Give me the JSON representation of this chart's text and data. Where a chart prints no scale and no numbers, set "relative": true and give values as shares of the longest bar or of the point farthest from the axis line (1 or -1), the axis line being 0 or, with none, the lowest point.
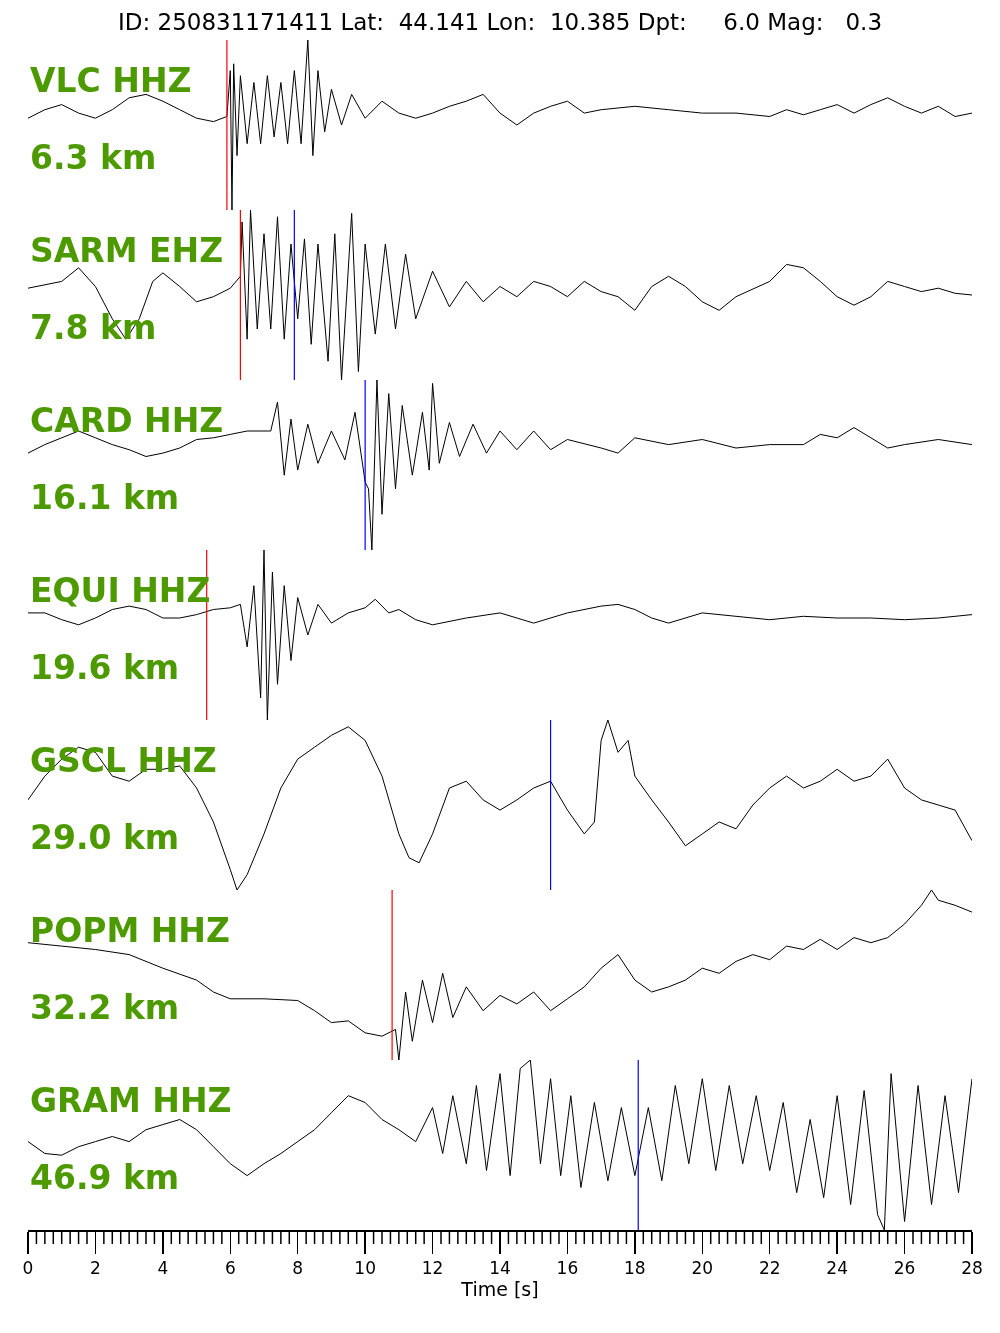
{
  "chart_data": [
    {
      "type": "line",
      "title": "ID: 250831171411 Lat:  44.141 Lon:  10.385 Dpt:     6.0 Mag:   0.3",
      "relative": true,
      "color": "#000000",
      "xlim": [
        0,
        28
      ],
      "tick_labels": false,
      "annotations": [
        "VLC HHZ",
        "6.3 km"
      ],
      "ref_lines": [
        {
          "axis": "x",
          "value": 5.9,
          "color": "#ff0000"
        }
      ],
      "x": [
        0,
        0.5,
        1,
        1.5,
        2,
        2.5,
        3,
        3.5,
        4,
        4.5,
        5,
        5.5,
        5.9,
        6.0,
        6.05,
        6.1,
        6.2,
        6.3,
        6.5,
        6.7,
        6.9,
        7.1,
        7.3,
        7.5,
        7.7,
        7.9,
        8.1,
        8.3,
        8.45,
        8.6,
        8.8,
        9,
        9.3,
        9.6,
        10,
        10.5,
        11,
        11.5,
        12,
        12.5,
        13,
        13.5,
        14,
        14.5,
        15,
        15.5,
        16,
        16.5,
        17,
        18,
        19,
        20,
        21,
        22,
        22.5,
        23,
        23.5,
        24,
        24.5,
        25,
        25.5,
        26,
        26.5,
        27,
        27.5,
        28
      ],
      "values": [
        0.54,
        0.59,
        0.62,
        0.57,
        0.54,
        0.59,
        0.66,
        0.68,
        0.64,
        0.59,
        0.54,
        0.52,
        0.55,
        0.82,
        0,
        0.86,
        0.32,
        0.79,
        0.39,
        0.75,
        0.39,
        0.79,
        0.43,
        0.75,
        0.39,
        0.82,
        0.39,
        1,
        0.32,
        0.82,
        0.46,
        0.71,
        0.5,
        0.68,
        0.54,
        0.64,
        0.57,
        0.54,
        0.57,
        0.61,
        0.64,
        0.68,
        0.57,
        0.5,
        0.57,
        0.61,
        0.64,
        0.57,
        0.59,
        0.61,
        0.59,
        0.57,
        0.57,
        0.55,
        0.59,
        0.56,
        0.59,
        0.62,
        0.57,
        0.62,
        0.66,
        0.61,
        0.57,
        0.61,
        0.55,
        0.57
      ]
    },
    {
      "type": "line",
      "relative": true,
      "color": "#000000",
      "xlim": [
        0,
        28
      ],
      "tick_labels": false,
      "annotations": [
        "SARM EHZ",
        "7.8 km"
      ],
      "ref_lines": [
        {
          "axis": "x",
          "value": 6.3,
          "color": "#ff0000"
        },
        {
          "axis": "x",
          "value": 7.9,
          "color": "#0000ff"
        }
      ],
      "x": [
        0,
        1,
        1.5,
        2,
        2.5,
        2.9,
        3.3,
        3.7,
        4,
        4.5,
        5,
        5.5,
        6,
        6.3,
        6.35,
        6.5,
        6.6,
        6.8,
        7,
        7.2,
        7.4,
        7.6,
        7.8,
        8,
        8.2,
        8.4,
        8.6,
        8.9,
        9.1,
        9.3,
        9.6,
        9.8,
        10,
        10.3,
        10.6,
        10.9,
        11.2,
        11.5,
        12,
        12.5,
        13,
        13.5,
        14,
        14.5,
        15,
        15.5,
        16,
        16.5,
        17,
        17.5,
        18,
        18.5,
        19,
        19.5,
        20,
        20.5,
        21,
        22,
        22.5,
        23,
        23.5,
        24,
        24.5,
        25,
        25.5,
        26,
        26.5,
        27,
        27.5,
        28
      ],
      "values": [
        0.54,
        0.58,
        0.66,
        0.55,
        0.36,
        0.24,
        0.36,
        0.58,
        0.63,
        0.55,
        0.46,
        0.49,
        0.54,
        0.61,
        0.93,
        0.24,
        1,
        0.3,
        0.86,
        0.3,
        0.96,
        0.24,
        0.8,
        0.36,
        0.83,
        0.21,
        0.8,
        0.11,
        0.86,
        0,
        0.98,
        0.05,
        0.8,
        0.27,
        0.8,
        0.3,
        0.74,
        0.36,
        0.64,
        0.43,
        0.58,
        0.46,
        0.55,
        0.49,
        0.58,
        0.55,
        0.49,
        0.58,
        0.52,
        0.49,
        0.41,
        0.55,
        0.61,
        0.55,
        0.46,
        0.41,
        0.49,
        0.58,
        0.68,
        0.66,
        0.58,
        0.49,
        0.44,
        0.49,
        0.58,
        0.55,
        0.52,
        0.54,
        0.51,
        0.5
      ]
    },
    {
      "type": "line",
      "relative": true,
      "color": "#000000",
      "xlim": [
        0,
        28
      ],
      "tick_labels": false,
      "annotations": [
        "CARD HHZ",
        "16.1 km"
      ],
      "ref_lines": [
        {
          "axis": "x",
          "value": 10.0,
          "color": "#0000ff"
        }
      ],
      "x": [
        0,
        0.5,
        1,
        1.5,
        2,
        2.5,
        3,
        3.5,
        4,
        4.5,
        5,
        5.5,
        6,
        6.5,
        7.2,
        7.4,
        7.6,
        7.8,
        8,
        8.3,
        8.6,
        9,
        9.4,
        9.7,
        10,
        10.1,
        10.2,
        10.35,
        10.5,
        10.7,
        10.9,
        11.1,
        11.4,
        11.7,
        11.9,
        12,
        12.2,
        12.5,
        12.8,
        13.2,
        13.6,
        14,
        14.5,
        15,
        15.5,
        16,
        17,
        17.5,
        18,
        19,
        20,
        21,
        22,
        23,
        23.5,
        24,
        24.5,
        25,
        25.5,
        26,
        27,
        28
      ],
      "values": [
        0.57,
        0.62,
        0.66,
        0.7,
        0.66,
        0.62,
        0.59,
        0.55,
        0.57,
        0.6,
        0.65,
        0.66,
        0.68,
        0.7,
        0.7,
        0.87,
        0.44,
        0.77,
        0.47,
        0.74,
        0.51,
        0.7,
        0.53,
        0.81,
        0.4,
        0.36,
        0,
        1,
        0.21,
        0.92,
        0.36,
        0.85,
        0.44,
        0.81,
        0.47,
        0.98,
        0.51,
        0.75,
        0.55,
        0.74,
        0.57,
        0.7,
        0.59,
        0.7,
        0.59,
        0.65,
        0.6,
        0.57,
        0.66,
        0.62,
        0.65,
        0.6,
        0.62,
        0.62,
        0.68,
        0.66,
        0.72,
        0.66,
        0.6,
        0.62,
        0.65,
        0.62
      ]
    },
    {
      "type": "line",
      "relative": true,
      "color": "#000000",
      "xlim": [
        0,
        28
      ],
      "tick_labels": false,
      "annotations": [
        "EQUI HHZ",
        "19.6 km"
      ],
      "ref_lines": [
        {
          "axis": "x",
          "value": 5.3,
          "color": "#ff0000"
        }
      ],
      "x": [
        0,
        0.5,
        1,
        1.5,
        2,
        2.5,
        3,
        3.5,
        4,
        4.5,
        5,
        5.5,
        6,
        6.3,
        6.5,
        6.7,
        6.9,
        7.0,
        7.1,
        7.25,
        7.4,
        7.6,
        7.8,
        8,
        8.3,
        8.6,
        9,
        9.5,
        10,
        10.3,
        10.7,
        11,
        11.5,
        12,
        13,
        14,
        14.5,
        15,
        16,
        17,
        17.5,
        18,
        18.5,
        19,
        20,
        21,
        22,
        23,
        24,
        25,
        26,
        27,
        28
      ],
      "values": [
        0.63,
        0.63,
        0.59,
        0.56,
        0.6,
        0.65,
        0.67,
        0.65,
        0.6,
        0.6,
        0.62,
        0.65,
        0.66,
        0.68,
        0.43,
        0.79,
        0.13,
        1,
        0,
        0.87,
        0.21,
        0.79,
        0.35,
        0.72,
        0.5,
        0.68,
        0.57,
        0.63,
        0.66,
        0.71,
        0.63,
        0.65,
        0.59,
        0.56,
        0.6,
        0.63,
        0.6,
        0.57,
        0.63,
        0.67,
        0.68,
        0.65,
        0.6,
        0.57,
        0.63,
        0.61,
        0.59,
        0.61,
        0.6,
        0.6,
        0.59,
        0.6,
        0.62
      ]
    },
    {
      "type": "line",
      "relative": true,
      "color": "#000000",
      "xlim": [
        0,
        28
      ],
      "tick_labels": false,
      "annotations": [
        "GSCL HHZ",
        "29.0 km"
      ],
      "ref_lines": [
        {
          "axis": "x",
          "value": 15.5,
          "color": "#0000ff"
        }
      ],
      "x": [
        0,
        0.5,
        1,
        1.5,
        2,
        2.5,
        3,
        3.5,
        4,
        4.5,
        5,
        5.5,
        6,
        6.2,
        6.5,
        7,
        7.5,
        8,
        8.5,
        9,
        9.5,
        10,
        10.5,
        11,
        11.3,
        11.6,
        12,
        12.5,
        13,
        13.5,
        14,
        14.5,
        15,
        15.5,
        16,
        16.5,
        16.8,
        17,
        17.2,
        17.5,
        17.8,
        18,
        18.5,
        19,
        19.5,
        20,
        20.5,
        21,
        21.5,
        22,
        22.5,
        23,
        23.5,
        24,
        24.5,
        25,
        25.5,
        26,
        26.5,
        27,
        27.5,
        28
      ],
      "values": [
        0.53,
        0.67,
        0.77,
        0.84,
        0.81,
        0.67,
        0.64,
        0.71,
        0.71,
        0.73,
        0.6,
        0.4,
        0.12,
        0,
        0.09,
        0.33,
        0.6,
        0.77,
        0.84,
        0.91,
        0.96,
        0.88,
        0.67,
        0.33,
        0.19,
        0.16,
        0.33,
        0.6,
        0.64,
        0.53,
        0.47,
        0.53,
        0.6,
        0.64,
        0.47,
        0.33,
        0.4,
        0.88,
        1,
        0.81,
        0.88,
        0.67,
        0.53,
        0.4,
        0.26,
        0.33,
        0.4,
        0.36,
        0.5,
        0.6,
        0.67,
        0.6,
        0.64,
        0.71,
        0.64,
        0.67,
        0.77,
        0.6,
        0.53,
        0.5,
        0.47,
        0.29
      ]
    },
    {
      "type": "line",
      "relative": true,
      "color": "#000000",
      "xlim": [
        0,
        28
      ],
      "tick_labels": false,
      "annotations": [
        "POPM HHZ",
        "32.2 km"
      ],
      "ref_lines": [
        {
          "axis": "x",
          "value": 10.8,
          "color": "#ff0000"
        }
      ],
      "x": [
        0,
        1,
        2,
        3,
        4,
        5,
        5.5,
        6,
        7,
        8,
        8.5,
        9,
        9.5,
        10,
        10.5,
        10.9,
        11,
        11.2,
        11.4,
        11.7,
        12,
        12.3,
        12.6,
        13,
        13.5,
        14,
        14.5,
        15,
        15.5,
        16,
        16.5,
        17,
        17.5,
        18,
        18.5,
        19,
        19.5,
        20,
        20.5,
        21,
        21.5,
        22,
        22.5,
        23,
        23.5,
        24,
        24.5,
        25,
        25.5,
        26,
        26.5,
        26.8,
        27,
        27.5,
        28
      ],
      "values": [
        0.69,
        0.67,
        0.65,
        0.62,
        0.54,
        0.47,
        0.4,
        0.36,
        0.36,
        0.35,
        0.29,
        0.22,
        0.23,
        0.16,
        0.14,
        0.18,
        0,
        0.4,
        0.11,
        0.47,
        0.22,
        0.51,
        0.25,
        0.43,
        0.29,
        0.38,
        0.33,
        0.4,
        0.29,
        0.36,
        0.43,
        0.54,
        0.62,
        0.47,
        0.4,
        0.43,
        0.47,
        0.54,
        0.51,
        0.58,
        0.62,
        0.59,
        0.67,
        0.65,
        0.71,
        0.65,
        0.72,
        0.69,
        0.72,
        0.8,
        0.91,
        1,
        0.94,
        0.91,
        0.87
      ]
    },
    {
      "type": "line",
      "relative": true,
      "color": "#000000",
      "xlim": [
        0,
        28
      ],
      "tick_labels": "x",
      "xlabel": "Time [s]",
      "annotations": [
        "GRAM HHZ",
        "46.9 km"
      ],
      "ref_lines": [
        {
          "axis": "x",
          "value": 18.1,
          "color": "#0000ff"
        }
      ],
      "xticks": [
        0,
        {
          "value": 0.25,
          "label": null
        },
        {
          "value": 0.5,
          "label": null
        },
        {
          "value": 0.75,
          "label": null
        },
        {
          "value": 1,
          "label": null
        },
        {
          "value": 1.25,
          "label": null
        },
        {
          "value": 1.5,
          "label": null
        },
        {
          "value": 1.75,
          "label": null
        },
        2,
        {
          "value": 2.25,
          "label": null
        },
        {
          "value": 2.5,
          "label": null
        },
        {
          "value": 2.75,
          "label": null
        },
        {
          "value": 3,
          "label": null
        },
        {
          "value": 3.25,
          "label": null
        },
        {
          "value": 3.5,
          "label": null
        },
        {
          "value": 3.75,
          "label": null
        },
        4,
        {
          "value": 4.25,
          "label": null
        },
        {
          "value": 4.5,
          "label": null
        },
        {
          "value": 4.75,
          "label": null
        },
        {
          "value": 5,
          "label": null
        },
        {
          "value": 5.25,
          "label": null
        },
        {
          "value": 5.5,
          "label": null
        },
        {
          "value": 5.75,
          "label": null
        },
        6,
        {
          "value": 6.25,
          "label": null
        },
        {
          "value": 6.5,
          "label": null
        },
        {
          "value": 6.75,
          "label": null
        },
        {
          "value": 7,
          "label": null
        },
        {
          "value": 7.25,
          "label": null
        },
        {
          "value": 7.5,
          "label": null
        },
        {
          "value": 7.75,
          "label": null
        },
        8,
        {
          "value": 8.25,
          "label": null
        },
        {
          "value": 8.5,
          "label": null
        },
        {
          "value": 8.75,
          "label": null
        },
        {
          "value": 9,
          "label": null
        },
        {
          "value": 9.25,
          "label": null
        },
        {
          "value": 9.5,
          "label": null
        },
        {
          "value": 9.75,
          "label": null
        },
        10,
        {
          "value": 10.25,
          "label": null
        },
        {
          "value": 10.5,
          "label": null
        },
        {
          "value": 10.75,
          "label": null
        },
        {
          "value": 11,
          "label": null
        },
        {
          "value": 11.25,
          "label": null
        },
        {
          "value": 11.5,
          "label": null
        },
        {
          "value": 11.75,
          "label": null
        },
        12,
        {
          "value": 12.25,
          "label": null
        },
        {
          "value": 12.5,
          "label": null
        },
        {
          "value": 12.75,
          "label": null
        },
        {
          "value": 13,
          "label": null
        },
        {
          "value": 13.25,
          "label": null
        },
        {
          "value": 13.5,
          "label": null
        },
        {
          "value": 13.75,
          "label": null
        },
        14,
        {
          "value": 14.25,
          "label": null
        },
        {
          "value": 14.5,
          "label": null
        },
        {
          "value": 14.75,
          "label": null
        },
        {
          "value": 15,
          "label": null
        },
        {
          "value": 15.25,
          "label": null
        },
        {
          "value": 15.5,
          "label": null
        },
        {
          "value": 15.75,
          "label": null
        },
        16,
        {
          "value": 16.25,
          "label": null
        },
        {
          "value": 16.5,
          "label": null
        },
        {
          "value": 16.75,
          "label": null
        },
        {
          "value": 17,
          "label": null
        },
        {
          "value": 17.25,
          "label": null
        },
        {
          "value": 17.5,
          "label": null
        },
        {
          "value": 17.75,
          "label": null
        },
        18,
        {
          "value": 18.25,
          "label": null
        },
        {
          "value": 18.5,
          "label": null
        },
        {
          "value": 18.75,
          "label": null
        },
        {
          "value": 19,
          "label": null
        },
        {
          "value": 19.25,
          "label": null
        },
        {
          "value": 19.5,
          "label": null
        },
        {
          "value": 19.75,
          "label": null
        },
        20,
        {
          "value": 20.25,
          "label": null
        },
        {
          "value": 20.5,
          "label": null
        },
        {
          "value": 20.75,
          "label": null
        },
        {
          "value": 21,
          "label": null
        },
        {
          "value": 21.25,
          "label": null
        },
        {
          "value": 21.5,
          "label": null
        },
        {
          "value": 21.75,
          "label": null
        },
        22,
        {
          "value": 22.25,
          "label": null
        },
        {
          "value": 22.5,
          "label": null
        },
        {
          "value": 22.75,
          "label": null
        },
        {
          "value": 23,
          "label": null
        },
        {
          "value": 23.25,
          "label": null
        },
        {
          "value": 23.5,
          "label": null
        },
        {
          "value": 23.75,
          "label": null
        },
        24,
        {
          "value": 24.25,
          "label": null
        },
        {
          "value": 24.5,
          "label": null
        },
        {
          "value": 24.75,
          "label": null
        },
        {
          "value": 25,
          "label": null
        },
        {
          "value": 25.25,
          "label": null
        },
        {
          "value": 25.5,
          "label": null
        },
        {
          "value": 25.75,
          "label": null
        },
        26,
        {
          "value": 26.25,
          "label": null
        },
        {
          "value": 26.5,
          "label": null
        },
        {
          "value": 26.75,
          "label": null
        },
        {
          "value": 27,
          "label": null
        },
        {
          "value": 27.25,
          "label": null
        },
        {
          "value": 27.5,
          "label": null
        },
        {
          "value": 27.75,
          "label": null
        },
        28
      ],
      "x": [
        0,
        0.5,
        1,
        1.5,
        2,
        2.5,
        3,
        3.5,
        4,
        4.5,
        5,
        5.5,
        6,
        6.5,
        7,
        7.5,
        8,
        8.5,
        9,
        9.5,
        10,
        10.5,
        11,
        11.5,
        12,
        12.3,
        12.6,
        13,
        13.3,
        13.6,
        14,
        14.3,
        14.6,
        14.9,
        15.2,
        15.5,
        15.8,
        16.1,
        16.4,
        16.8,
        17.2,
        17.6,
        18,
        18.4,
        18.8,
        19.2,
        19.6,
        20,
        20.4,
        20.8,
        21.2,
        21.6,
        22,
        22.4,
        22.8,
        23.2,
        23.6,
        24,
        24.4,
        24.8,
        25.2,
        25.4,
        25.6,
        26,
        26.4,
        26.8,
        27.2,
        27.6,
        28
      ],
      "values": [
        0.52,
        0.45,
        0.44,
        0.49,
        0.52,
        0.55,
        0.52,
        0.59,
        0.62,
        0.65,
        0.59,
        0.49,
        0.39,
        0.32,
        0.39,
        0.45,
        0.52,
        0.59,
        0.69,
        0.79,
        0.75,
        0.65,
        0.59,
        0.52,
        0.72,
        0.45,
        0.79,
        0.39,
        0.85,
        0.35,
        0.92,
        0.32,
        0.95,
        1,
        0.39,
        0.89,
        0.32,
        0.79,
        0.25,
        0.75,
        0.29,
        0.72,
        0.32,
        0.72,
        0.29,
        0.85,
        0.39,
        0.89,
        0.35,
        0.85,
        0.39,
        0.79,
        0.35,
        0.75,
        0.22,
        0.65,
        0.19,
        0.79,
        0.15,
        0.82,
        0.09,
        0,
        0.92,
        0.05,
        0.85,
        0.15,
        0.79,
        0.22,
        0.89
      ]
    }
  ]
}
